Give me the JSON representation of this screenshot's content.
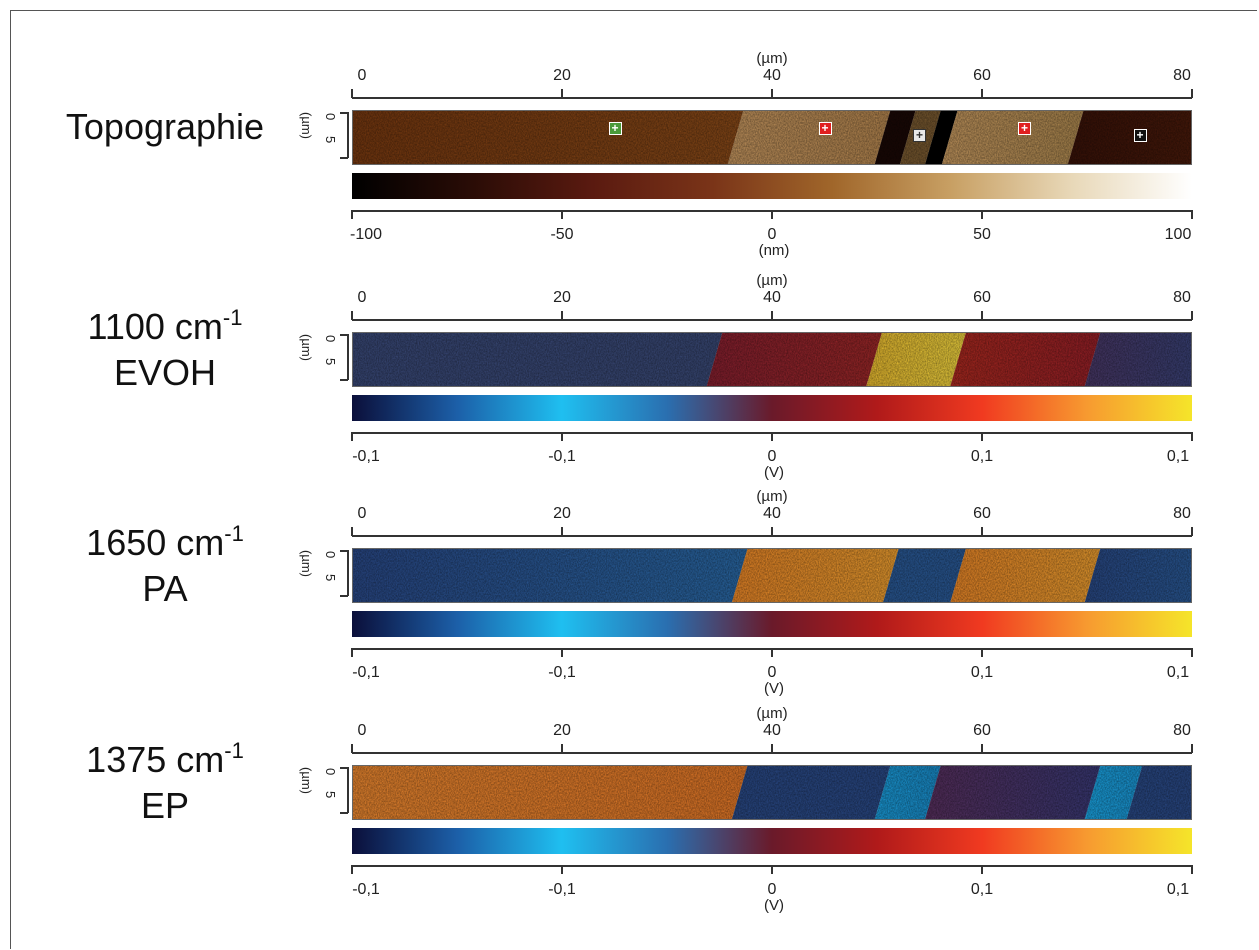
{
  "panels": [
    {
      "id": "topographie",
      "label_lines": [
        "Topographie"
      ],
      "label_sup": "",
      "x_unit": "(µm)",
      "x_ticks": [
        "0",
        "20",
        "40",
        "60",
        "80"
      ],
      "y_unit": "(µm)",
      "y_ticks": [
        "0",
        "5"
      ],
      "colorbar_unit": "(nm)",
      "colorbar_ticks": [
        "-100",
        "-50",
        "0",
        "50",
        "100"
      ],
      "colormap": [
        "#000000",
        "#2a0c06",
        "#5a1a10",
        "#7a3418",
        "#a0662a",
        "#c8a064",
        "#e8d8b8",
        "#ffffff"
      ]
    },
    {
      "id": "evoh",
      "label_lines": [
        "1100 cm",
        "EVOH"
      ],
      "label_sup": "-1",
      "x_unit": "(µm)",
      "x_ticks": [
        "0",
        "20",
        "40",
        "60",
        "80"
      ],
      "y_unit": "(µm)",
      "y_ticks": [
        "0",
        "5"
      ],
      "colorbar_unit": "(V)",
      "colorbar_ticks": [
        "-0,1",
        "-0,1",
        "0",
        "0,1",
        "0,1"
      ],
      "colormap": [
        "#0b0f3a",
        "#1c5fa8",
        "#1fbff0",
        "#2a6fb0",
        "#6a1a2a",
        "#b01a1a",
        "#f03a20",
        "#f79a30",
        "#f5e52a"
      ]
    },
    {
      "id": "pa",
      "label_lines": [
        "1650 cm",
        "PA"
      ],
      "label_sup": "-1",
      "x_unit": "(µm)",
      "x_ticks": [
        "0",
        "20",
        "40",
        "60",
        "80"
      ],
      "y_unit": "(µm)",
      "y_ticks": [
        "0",
        "5"
      ],
      "colorbar_unit": "(V)",
      "colorbar_ticks": [
        "-0,1",
        "-0,1",
        "0",
        "0,1",
        "0,1"
      ],
      "colormap": [
        "#0b0f3a",
        "#1c5fa8",
        "#1fbff0",
        "#2a6fb0",
        "#6a1a2a",
        "#b01a1a",
        "#f03a20",
        "#f79a30",
        "#f5e52a"
      ]
    },
    {
      "id": "ep",
      "label_lines": [
        "1375 cm",
        "EP"
      ],
      "label_sup": "-1",
      "x_unit": "(µm)",
      "x_ticks": [
        "0",
        "20",
        "40",
        "60",
        "80"
      ],
      "y_unit": "(µm)",
      "y_ticks": [
        "0",
        "5"
      ],
      "colorbar_unit": "(V)",
      "colorbar_ticks": [
        "-0,1",
        "-0,1",
        "0",
        "0,1",
        "0,1"
      ],
      "colormap": [
        "#0b0f3a",
        "#1c5fa8",
        "#1fbff0",
        "#2a6fb0",
        "#6a1a2a",
        "#b01a1a",
        "#f03a20",
        "#f79a30",
        "#f5e52a"
      ]
    }
  ],
  "topography_markers": [
    {
      "x_um": 25,
      "color": "#4a9a3a"
    },
    {
      "x_um": 45,
      "color": "#e02020"
    },
    {
      "x_um": 54,
      "color": "#e8e8e8"
    },
    {
      "x_um": 64,
      "color": "#e02020"
    },
    {
      "x_um": 75,
      "color": "#111111"
    }
  ]
}
